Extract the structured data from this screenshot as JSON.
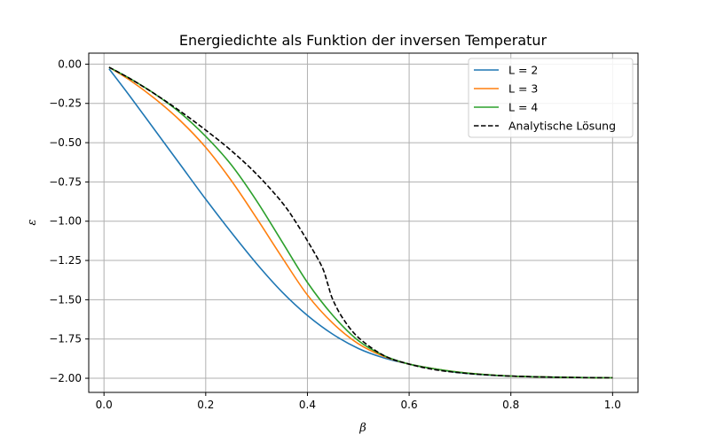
{
  "chart_data": {
    "type": "line",
    "title": "Energiedichte als Funktion der inversen Temperatur",
    "xlabel": "β",
    "ylabel": "ε",
    "xlim": [
      -0.03,
      1.05
    ],
    "ylim": [
      -2.09,
      0.07
    ],
    "xticks": [
      0.0,
      0.2,
      0.4,
      0.6,
      0.8,
      1.0
    ],
    "xtick_labels": [
      "0.0",
      "0.2",
      "0.4",
      "0.6",
      "0.8",
      "1.0"
    ],
    "yticks": [
      0.0,
      -0.25,
      -0.5,
      -0.75,
      -1.0,
      -1.25,
      -1.5,
      -1.75,
      -2.0
    ],
    "ytick_labels": [
      "0.00",
      "−0.25",
      "−0.50",
      "−0.75",
      "−1.00",
      "−1.25",
      "−1.50",
      "−1.75",
      "−2.00"
    ],
    "grid": true,
    "legend_position": "top-right",
    "series": [
      {
        "name": "L = 2",
        "color": "#1f77b4",
        "style": "solid",
        "x": [
          0.01,
          0.05,
          0.1,
          0.15,
          0.2,
          0.25,
          0.3,
          0.35,
          0.4,
          0.45,
          0.5,
          0.55,
          0.6,
          0.65,
          0.7,
          0.75,
          0.8,
          0.85,
          0.9,
          0.95,
          1.0
        ],
        "y": [
          -0.03,
          -0.2,
          -0.42,
          -0.64,
          -0.86,
          -1.07,
          -1.27,
          -1.45,
          -1.6,
          -1.72,
          -1.81,
          -1.87,
          -1.91,
          -1.94,
          -1.965,
          -1.978,
          -1.986,
          -1.991,
          -1.994,
          -1.996,
          -1.997
        ]
      },
      {
        "name": "L = 3",
        "color": "#ff7f0e",
        "style": "solid",
        "x": [
          0.01,
          0.05,
          0.1,
          0.15,
          0.2,
          0.25,
          0.3,
          0.35,
          0.4,
          0.45,
          0.5,
          0.55,
          0.6,
          0.65,
          0.7,
          0.75,
          0.8,
          0.85,
          0.9,
          0.95,
          1.0
        ],
        "y": [
          -0.02,
          -0.1,
          -0.22,
          -0.36,
          -0.53,
          -0.74,
          -0.98,
          -1.23,
          -1.47,
          -1.65,
          -1.78,
          -1.86,
          -1.91,
          -1.94,
          -1.962,
          -1.977,
          -1.986,
          -1.991,
          -1.994,
          -1.996,
          -1.997
        ]
      },
      {
        "name": "L = 4",
        "color": "#2ca02c",
        "style": "solid",
        "x": [
          0.01,
          0.05,
          0.1,
          0.15,
          0.2,
          0.25,
          0.3,
          0.35,
          0.4,
          0.45,
          0.5,
          0.55,
          0.6,
          0.65,
          0.7,
          0.75,
          0.8,
          0.85,
          0.9,
          0.95,
          1.0
        ],
        "y": [
          -0.02,
          -0.09,
          -0.19,
          -0.31,
          -0.46,
          -0.64,
          -0.87,
          -1.13,
          -1.39,
          -1.6,
          -1.76,
          -1.855,
          -1.91,
          -1.94,
          -1.962,
          -1.977,
          -1.986,
          -1.991,
          -1.994,
          -1.996,
          -1.997
        ]
      },
      {
        "name": "Analytische Lösung",
        "color": "#000000",
        "style": "dashed",
        "x": [
          0.01,
          0.05,
          0.1,
          0.15,
          0.2,
          0.25,
          0.3,
          0.35,
          0.38,
          0.41,
          0.43,
          0.44,
          0.45,
          0.47,
          0.5,
          0.55,
          0.6,
          0.65,
          0.7,
          0.75,
          0.8,
          0.85,
          0.9,
          0.95,
          1.0
        ],
        "y": [
          -0.02,
          -0.09,
          -0.19,
          -0.3,
          -0.42,
          -0.55,
          -0.7,
          -0.88,
          -1.02,
          -1.18,
          -1.3,
          -1.4,
          -1.5,
          -1.62,
          -1.74,
          -1.855,
          -1.91,
          -1.945,
          -1.965,
          -1.978,
          -1.986,
          -1.991,
          -1.994,
          -1.996,
          -1.997
        ]
      }
    ]
  }
}
